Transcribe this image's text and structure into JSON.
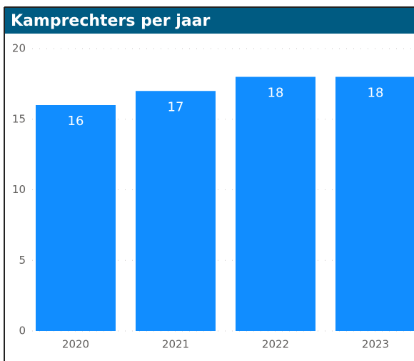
{
  "chart_data": {
    "type": "bar",
    "title": "Kamprechters per jaar",
    "categories": [
      "2020",
      "2021",
      "2022",
      "2023"
    ],
    "values": [
      16,
      17,
      18,
      18
    ],
    "color": "#118dff",
    "ylim": [
      0,
      20
    ],
    "yticks": [
      0,
      5,
      10,
      15,
      20
    ],
    "grid": true
  }
}
